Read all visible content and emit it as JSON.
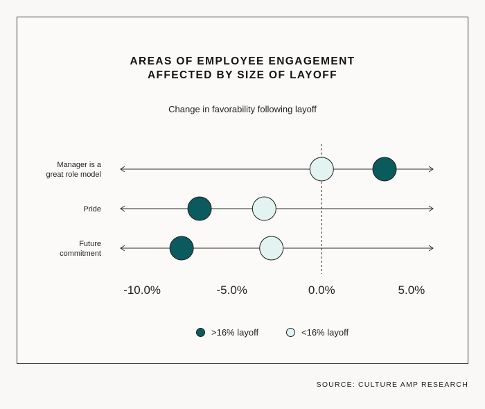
{
  "chart_data": {
    "type": "scatter",
    "title_lines": [
      "AREAS OF EMPLOYEE ENGAGEMENT",
      "AFFECTED BY SIZE OF LAYOFF"
    ],
    "subtitle": "Change in favorability following layoff",
    "categories": [
      [
        "Manager is a",
        "great role model"
      ],
      [
        "Pride"
      ],
      [
        "Future",
        "commitment"
      ]
    ],
    "series": [
      {
        "name": ">16% layoff",
        "color": "#0b5a5e",
        "values": [
          3.5,
          -6.8,
          -7.8
        ]
      },
      {
        "name": "<16% layoff",
        "color": "#e2f3f1",
        "values": [
          0.0,
          -3.2,
          -2.8
        ]
      }
    ],
    "xlim": [
      -11.2,
      6.2
    ],
    "x_ticks": [
      -10.0,
      -5.0,
      0.0,
      5.0
    ],
    "x_tick_labels": [
      "-10.0%",
      "-5.0%",
      "0.0%",
      "5.0%"
    ],
    "reference_line_x": 0.0
  },
  "source": "SOURCE: CULTURE AMP RESEARCH"
}
